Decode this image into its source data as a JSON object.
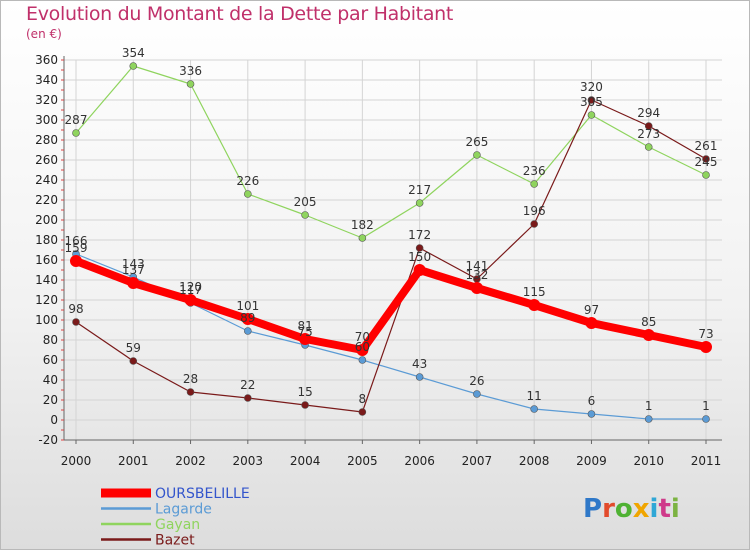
{
  "title": "Evolution du Montant de la Dette par Habitant",
  "subtitle": "(en €)",
  "logo": {
    "text": "Proxiti",
    "colors": [
      "#2f78c8",
      "#e24b2c",
      "#4fb233",
      "#f0a500",
      "#2fa7d6",
      "#cf3a8a",
      "#7cb342"
    ]
  },
  "chart_data": {
    "type": "line",
    "x": [
      "2000",
      "2001",
      "2002",
      "2003",
      "2004",
      "2005",
      "2006",
      "2007",
      "2008",
      "2009",
      "2010",
      "2011"
    ],
    "ylim": [
      -20,
      360
    ],
    "yticks": [
      -20,
      0,
      20,
      40,
      60,
      80,
      100,
      120,
      140,
      160,
      180,
      200,
      220,
      240,
      260,
      280,
      300,
      320,
      340,
      360
    ],
    "grid": true,
    "legend": "bottom-left",
    "series": [
      {
        "name": "OURSBELILLE",
        "color": "#ff0000",
        "width": 8,
        "marker": 6,
        "values": [
          159,
          137,
          120,
          101,
          81,
          70,
          150,
          132,
          115,
          97,
          85,
          73
        ]
      },
      {
        "name": "Lagarde",
        "color": "#5b9bd5",
        "width": 1.2,
        "marker": 3.5,
        "values": [
          166,
          143,
          117,
          89,
          75,
          60,
          43,
          26,
          11,
          6,
          1,
          1
        ]
      },
      {
        "name": "Gayan",
        "color": "#8fd45e",
        "width": 1.2,
        "marker": 3.5,
        "values": [
          287,
          354,
          336,
          226,
          205,
          182,
          217,
          265,
          236,
          305,
          273,
          245
        ]
      },
      {
        "name": "Bazet",
        "color": "#7a1a1a",
        "width": 1.2,
        "marker": 3.5,
        "values": [
          98,
          59,
          28,
          22,
          15,
          8,
          172,
          141,
          196,
          320,
          294,
          261
        ]
      }
    ]
  }
}
